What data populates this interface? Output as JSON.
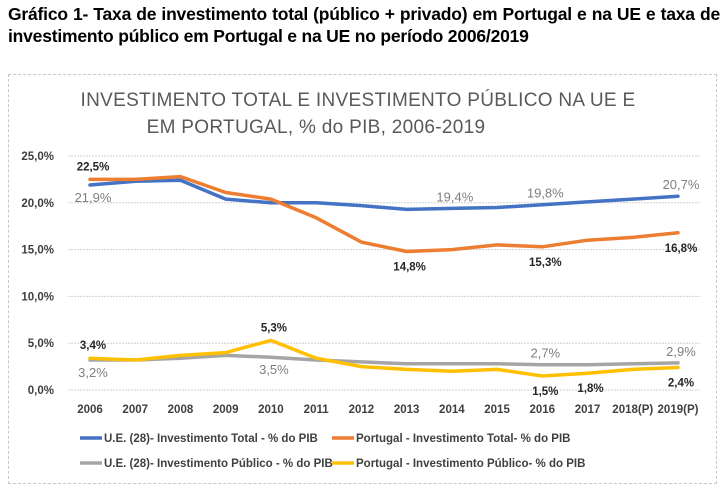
{
  "caption": "Gráfico 1- Taxa de investimento total (público + privado) em Portugal e na UE e taxa de investimento público em Portugal e na UE no período 2006/2019",
  "chart_data": {
    "type": "line",
    "title_line1": "INVESTIMENTO TOTAL E INVESTIMENTO PÚBLICO NA UE E",
    "title_line2": "EM PORTUGAL, % do PIB,  2006-2019",
    "xlabel": "",
    "ylabel": "",
    "ylim": [
      0,
      25
    ],
    "yticks": [
      0,
      5,
      10,
      15,
      20,
      25
    ],
    "ytick_labels": [
      "0,0%",
      "5,0%",
      "10,0%",
      "15,0%",
      "20,0%",
      "25,0%"
    ],
    "grid": true,
    "legend_position": "bottom",
    "categories": [
      "2006",
      "2007",
      "2008",
      "2009",
      "2010",
      "2011",
      "2012",
      "2013",
      "2014",
      "2015",
      "2016",
      "2017",
      "2018(P)",
      "2019(P)"
    ],
    "series": [
      {
        "name": "U.E. (28)- Investimento Total - % do PIB",
        "color": "#4472c4",
        "values": [
          21.9,
          22.3,
          22.4,
          20.4,
          20.0,
          20.0,
          19.7,
          19.3,
          19.4,
          19.5,
          19.8,
          20.1,
          20.4,
          20.7
        ],
        "labels": [
          {
            "index": 0,
            "text": "21,9%",
            "pos": "below"
          },
          {
            "index": 8,
            "text": "19,4%",
            "pos": "above"
          },
          {
            "index": 10,
            "text": "19,8%",
            "pos": "above"
          },
          {
            "index": 13,
            "text": "20,7%",
            "pos": "above"
          }
        ],
        "label_style": "gray"
      },
      {
        "name": "Portugal - Investimento Total- % do PIB",
        "color": "#ed7d31",
        "values": [
          22.5,
          22.5,
          22.8,
          21.1,
          20.4,
          18.4,
          15.8,
          14.8,
          15.0,
          15.5,
          15.3,
          16.0,
          16.3,
          16.8
        ],
        "labels": [
          {
            "index": 0,
            "text": "22,5%",
            "pos": "above"
          },
          {
            "index": 7,
            "text": "14,8%",
            "pos": "below"
          },
          {
            "index": 10,
            "text": "15,3%",
            "pos": "below"
          },
          {
            "index": 13,
            "text": "16,8%",
            "pos": "below"
          }
        ],
        "label_style": "dark"
      },
      {
        "name": "U.E. (28)- Investimento Público - % do PIB",
        "color": "#a5a5a5",
        "values": [
          3.2,
          3.2,
          3.4,
          3.7,
          3.5,
          3.2,
          3.0,
          2.8,
          2.8,
          2.8,
          2.7,
          2.7,
          2.8,
          2.9
        ],
        "labels": [
          {
            "index": 0,
            "text": "3,2%",
            "pos": "below"
          },
          {
            "index": 4,
            "text": "3,5%",
            "pos": "below"
          },
          {
            "index": 10,
            "text": "2,7%",
            "pos": "above"
          },
          {
            "index": 13,
            "text": "2,9%",
            "pos": "above"
          }
        ],
        "label_style": "gray"
      },
      {
        "name": "Portugal - Investimento Público- % do PIB",
        "color": "#ffc000",
        "values": [
          3.4,
          3.2,
          3.7,
          4.0,
          5.3,
          3.4,
          2.5,
          2.2,
          2.0,
          2.2,
          1.5,
          1.8,
          2.2,
          2.4
        ],
        "labels": [
          {
            "index": 0,
            "text": "3,4%",
            "pos": "above"
          },
          {
            "index": 4,
            "text": "5,3%",
            "pos": "above"
          },
          {
            "index": 10,
            "text": "1,5%",
            "pos": "below"
          },
          {
            "index": 11,
            "text": "1,8%",
            "pos": "below"
          },
          {
            "index": 13,
            "text": "2,4%",
            "pos": "below"
          }
        ],
        "label_style": "dark"
      }
    ]
  }
}
